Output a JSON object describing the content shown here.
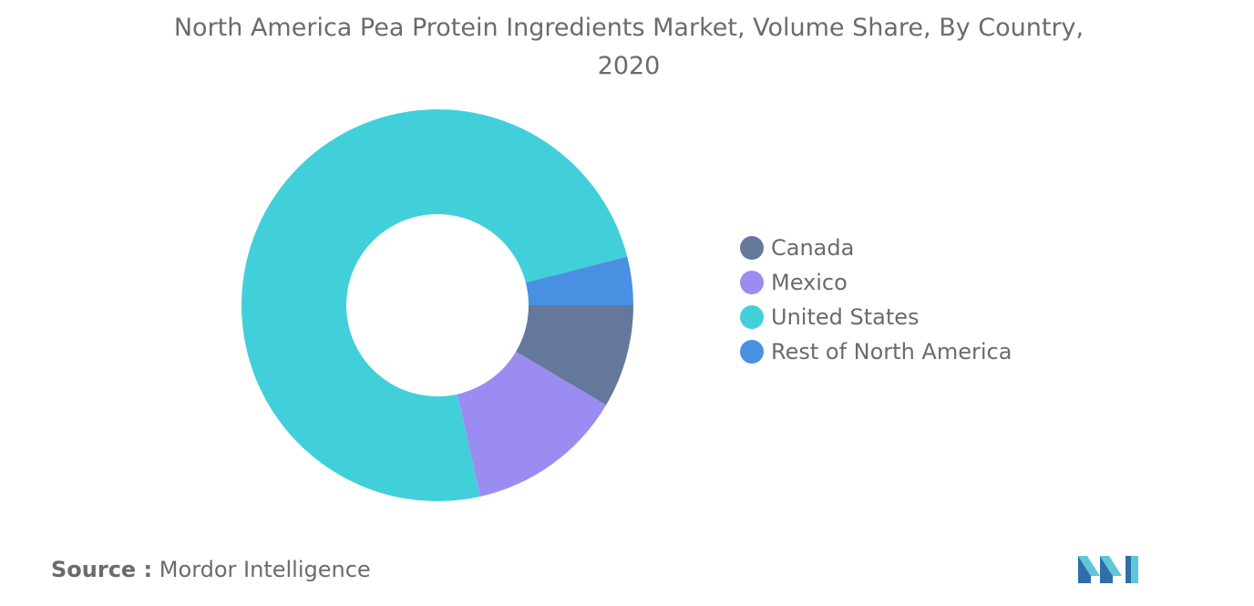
{
  "chart_data": {
    "type": "pie",
    "donut": true,
    "title": "North America Pea Protein Ingredients Market, Volume Share, By Country, 2020",
    "categories": [
      "Canada",
      "Mexico",
      "United States",
      "Rest of North America"
    ],
    "values": [
      8.5,
      13,
      74.5,
      4
    ],
    "unit": "%",
    "legend_position": "right",
    "colors": [
      "#64789b",
      "#9b8cf2",
      "#41d0d9",
      "#4a90e2"
    ]
  },
  "source": {
    "label": "Source :",
    "text": "Mordor Intelligence"
  },
  "logo": {
    "icon": "mordor-intelligence-logo",
    "colors": [
      "#5ec8d8",
      "#2f6fa8"
    ]
  }
}
